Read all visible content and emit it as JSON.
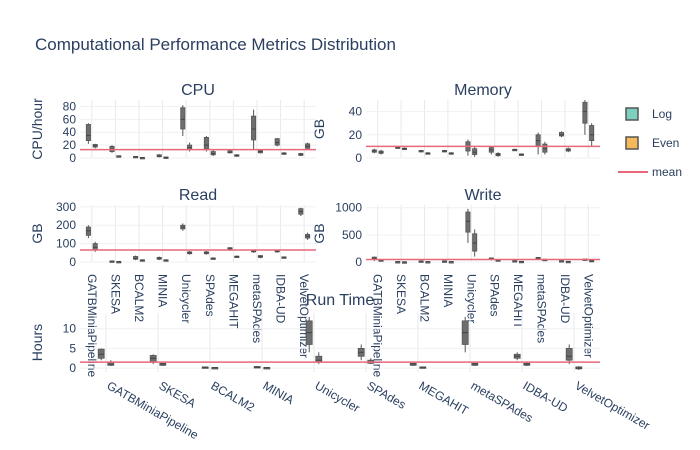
{
  "title": "Computational Performance Metrics Distribution",
  "legend": [
    {
      "name": "Log",
      "color": "#7dcfc0"
    },
    {
      "name": "Even",
      "color": "#f5b95c"
    },
    {
      "name": "mean",
      "color": "#e8677b"
    }
  ],
  "chart_data": [
    {
      "type": "box",
      "title": "CPU",
      "ylabel": "CPU/hour",
      "ylim": [
        0,
        90
      ],
      "yticks": [
        0,
        20,
        40,
        60,
        80
      ],
      "mean": 13,
      "categories": [
        "GATBMiniaPipeline",
        "SKESA",
        "BCALM2",
        "MINIA",
        "Unicycler",
        "SPAdes",
        "MEGAHIT",
        "metaSPAdes",
        "IDBA-UD",
        "VelvetOptimizer"
      ],
      "series": [
        {
          "name": "Log",
          "values": [
            [
              22,
              27,
              35,
              52,
              54
            ],
            [
              8,
              10,
              14,
              18,
              20
            ],
            [
              1,
              1.5,
              2,
              2.5,
              3
            ],
            [
              1,
              2,
              3,
              5,
              6
            ],
            [
              34,
              45,
              60,
              78,
              82
            ],
            [
              10,
              14,
              20,
              32,
              34
            ],
            [
              7,
              8,
              9,
              11,
              12
            ],
            [
              12,
              28,
              45,
              65,
              75
            ],
            [
              18,
              20,
              24,
              30,
              31
            ],
            [
              3,
              4,
              5,
              7,
              8
            ]
          ]
        },
        {
          "name": "Even",
          "values": [
            [
              15,
              17,
              19,
              21,
              22
            ],
            [
              2,
              2.5,
              3,
              3.5,
              4
            ],
            [
              0,
              0.3,
              0.6,
              0.9,
              1
            ],
            [
              0,
              0.5,
              1,
              1.5,
              2
            ],
            [
              10,
              13,
              16,
              20,
              24
            ],
            [
              3,
              5,
              7,
              10,
              12
            ],
            [
              2,
              3,
              4,
              5,
              6
            ],
            [
              7,
              8,
              10,
              12,
              13
            ],
            [
              5,
              6,
              7,
              8,
              9
            ],
            [
              13,
              15,
              18,
              22,
              24
            ]
          ]
        }
      ]
    },
    {
      "type": "box",
      "title": "Memory",
      "ylabel": "GB",
      "ylim": [
        0,
        50
      ],
      "yticks": [
        0,
        20,
        40
      ],
      "mean": 10,
      "categories": [
        "GATBMiniaPipeline",
        "SKESA",
        "BCALM2",
        "MINIA",
        "Unicycler",
        "SPAdes",
        "MEGAHIT",
        "metaSPAdes",
        "IDBA-UD",
        "VelvetOptimizer"
      ],
      "series": [
        {
          "name": "Log",
          "values": [
            [
              4,
              5,
              6,
              7,
              8
            ],
            [
              8,
              8.5,
              9,
              9.5,
              10
            ],
            [
              5,
              5.5,
              6,
              6.5,
              7
            ],
            [
              5,
              5.5,
              6,
              6.5,
              7
            ],
            [
              2,
              6,
              10,
              14,
              16
            ],
            [
              3,
              5,
              7,
              9,
              10
            ],
            [
              6,
              6.5,
              7,
              7.5,
              8
            ],
            [
              3,
              10,
              15,
              20,
              22
            ],
            [
              18,
              19,
              20,
              22,
              23
            ],
            [
              20,
              30,
              40,
              48,
              50
            ]
          ]
        },
        {
          "name": "Even",
          "values": [
            [
              3,
              4,
              5,
              6,
              7
            ],
            [
              7,
              7.5,
              8,
              8.5,
              9
            ],
            [
              3,
              3.5,
              4,
              4.5,
              5
            ],
            [
              3,
              3.5,
              4,
              4.5,
              5
            ],
            [
              1,
              3,
              5,
              8,
              10
            ],
            [
              1,
              2,
              3,
              4,
              5
            ],
            [
              2,
              2.5,
              3,
              3.5,
              4
            ],
            [
              3,
              5,
              8,
              12,
              14
            ],
            [
              5,
              6,
              7,
              8,
              9
            ],
            [
              10,
              15,
              20,
              28,
              30
            ]
          ]
        }
      ]
    },
    {
      "type": "box",
      "title": "Read",
      "ylabel": "GB",
      "ylim": [
        0,
        310
      ],
      "yticks": [
        0,
        100,
        200,
        300
      ],
      "mean": 65,
      "categories": [
        "GATBMiniaPipeline",
        "SKESA",
        "BCALM2",
        "MINIA",
        "Unicycler",
        "SPAdes",
        "MEGAHIT",
        "metaSPAdes",
        "IDBA-UD",
        "VelvetOptimizer"
      ],
      "series": [
        {
          "name": "Log",
          "values": [
            [
              130,
              145,
              170,
              190,
              200
            ],
            [
              0,
              2,
              4,
              6,
              8
            ],
            [
              10,
              15,
              20,
              30,
              35
            ],
            [
              10,
              15,
              20,
              25,
              30
            ],
            [
              170,
              180,
              190,
              200,
              210
            ],
            [
              40,
              45,
              50,
              55,
              60
            ],
            [
              60,
              65,
              72,
              78,
              80
            ],
            [
              50,
              55,
              60,
              64,
              66
            ],
            [
              50,
              55,
              60,
              64,
              66
            ],
            [
              250,
              260,
              275,
              290,
              295
            ]
          ]
        },
        {
          "name": "Even",
          "values": [
            [
              55,
              65,
              80,
              100,
              110
            ],
            [
              0,
              1,
              2,
              3,
              4
            ],
            [
              5,
              7,
              10,
              12,
              15
            ],
            [
              5,
              7,
              10,
              12,
              15
            ],
            [
              40,
              45,
              50,
              55,
              60
            ],
            [
              15,
              18,
              20,
              22,
              25
            ],
            [
              25,
              28,
              30,
              32,
              35
            ],
            [
              20,
              25,
              30,
              35,
              38
            ],
            [
              20,
              22,
              25,
              28,
              30
            ],
            [
              120,
              130,
              140,
              150,
              160
            ]
          ]
        }
      ]
    },
    {
      "type": "box",
      "title": "Write",
      "ylabel": "GB",
      "ylim": [
        0,
        1050
      ],
      "yticks": [
        0,
        500,
        1000
      ],
      "mean": 45,
      "categories": [
        "GATBMiniaPipeline",
        "SKESA",
        "BCALM2",
        "MINIA",
        "Unicycler",
        "SPAdes",
        "MEGAHIT",
        "metaSPAdes",
        "IDBA-UD",
        "VelvetOptimizer"
      ],
      "series": [
        {
          "name": "Log",
          "values": [
            [
              20,
              50,
              70,
              90,
              100
            ],
            [
              2,
              4,
              6,
              8,
              10
            ],
            [
              5,
              10,
              15,
              20,
              25
            ],
            [
              5,
              10,
              15,
              20,
              25
            ],
            [
              350,
              550,
              750,
              920,
              980
            ],
            [
              30,
              45,
              60,
              75,
              80
            ],
            [
              10,
              15,
              20,
              25,
              30
            ],
            [
              40,
              55,
              70,
              85,
              90
            ],
            [
              10,
              15,
              20,
              25,
              30
            ],
            [
              20,
              30,
              40,
              55,
              60
            ]
          ]
        },
        {
          "name": "Even",
          "values": [
            [
              10,
              20,
              30,
              40,
              50
            ],
            [
              0,
              2,
              3,
              4,
              5
            ],
            [
              2,
              4,
              6,
              8,
              10
            ],
            [
              2,
              4,
              6,
              8,
              10
            ],
            [
              100,
              200,
              350,
              520,
              600
            ],
            [
              10,
              20,
              30,
              40,
              50
            ],
            [
              5,
              8,
              10,
              12,
              15
            ],
            [
              20,
              30,
              40,
              50,
              60
            ],
            [
              5,
              8,
              10,
              12,
              15
            ],
            [
              10,
              15,
              20,
              30,
              35
            ]
          ]
        }
      ]
    },
    {
      "type": "box",
      "title": "Run Time",
      "ylabel": "Hours",
      "ylim": [
        -1,
        14
      ],
      "yticks": [
        0,
        5,
        10
      ],
      "mean": 1.5,
      "categories": [
        "GATBMiniaPipeline",
        "SKESA",
        "BCALM2",
        "MINIA",
        "Unicycler",
        "SPAdes",
        "MEGAHIT",
        "metaSPAdes",
        "IDBA-UD",
        "VelvetOptimizer"
      ],
      "series": [
        {
          "name": "Log",
          "values": [
            [
              2,
              2.5,
              3.5,
              4.8,
              5
            ],
            [
              1,
              1.5,
              2.5,
              3.2,
              3.5
            ],
            [
              0,
              0.1,
              0.2,
              0.3,
              0.4
            ],
            [
              0,
              0.1,
              0.2,
              0.4,
              0.5
            ],
            [
              4,
              6,
              9,
              12,
              13
            ],
            [
              2,
              3,
              4,
              5,
              6
            ],
            [
              0.5,
              0.7,
              1,
              1.2,
              1.5
            ],
            [
              4,
              6,
              9,
              12,
              13
            ],
            [
              2,
              2.5,
              3,
              3.5,
              4
            ],
            [
              1,
              2,
              3,
              5,
              6
            ]
          ]
        },
        {
          "name": "Even",
          "values": [
            [
              0.5,
              0.7,
              1,
              1.5,
              2
            ],
            [
              0.5,
              0.7,
              1,
              1.2,
              1.5
            ],
            [
              0,
              0.05,
              0.1,
              0.15,
              0.2
            ],
            [
              0,
              0.05,
              0.1,
              0.15,
              0.2
            ],
            [
              1,
              1.5,
              2,
              3,
              4
            ],
            [
              1,
              1.2,
              1.5,
              2,
              2.5
            ],
            [
              0,
              0.1,
              0.2,
              0.3,
              0.4
            ],
            [
              0.5,
              0.7,
              1,
              1.2,
              1.5
            ],
            [
              0.5,
              0.7,
              1,
              1.2,
              1.5
            ],
            [
              -0.5,
              -0.2,
              0,
              0.3,
              0.5
            ]
          ]
        }
      ]
    }
  ]
}
